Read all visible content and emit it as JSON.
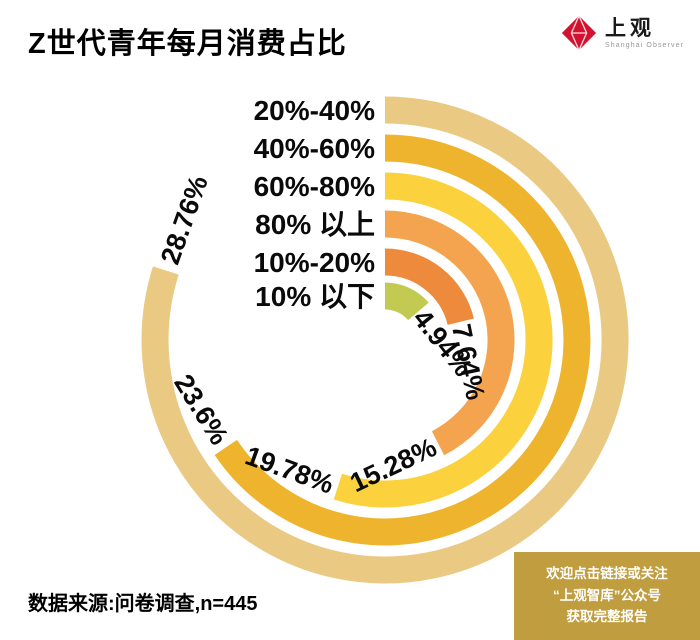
{
  "title": "Z世代青年每月消费占比",
  "logo": {
    "name": "上观",
    "subtitle": "Shanghai Observer",
    "accent_color": "#d2122e"
  },
  "chart_data": {
    "type": "radial-bar",
    "title": "Z世代青年每月消费占比",
    "categories": [
      "20%-40%",
      "40%-60%",
      "60%-80%",
      "80% 以上",
      "10%-20%",
      "10% 以下"
    ],
    "values": [
      28.76,
      23.6,
      19.78,
      15.28,
      7.64,
      4.94
    ],
    "value_labels": [
      "28.76%",
      "23.6%",
      "19.78%",
      "15.28%",
      "7.64%",
      "4.94%"
    ],
    "colors": [
      "#eac983",
      "#efb42e",
      "#fbd23e",
      "#f4a44e",
      "#ed8a3c",
      "#c2ca52"
    ],
    "unit": "%",
    "total": 100,
    "start_angle_deg": 0,
    "degrees_per_percent": 10,
    "direction": "clockwise",
    "legend_position": "category-labels-at-arc-start-left, value-labels-at-arc-end-tangent"
  },
  "source": {
    "text": "数据来源:问卷调查,n=445",
    "n": 445
  },
  "promo": {
    "lines": [
      "欢迎点击链接或关注",
      "“上观智库”公众号",
      "获取完整报告"
    ],
    "bg_color": "#c09d3e",
    "text_color": "#ffffff"
  }
}
